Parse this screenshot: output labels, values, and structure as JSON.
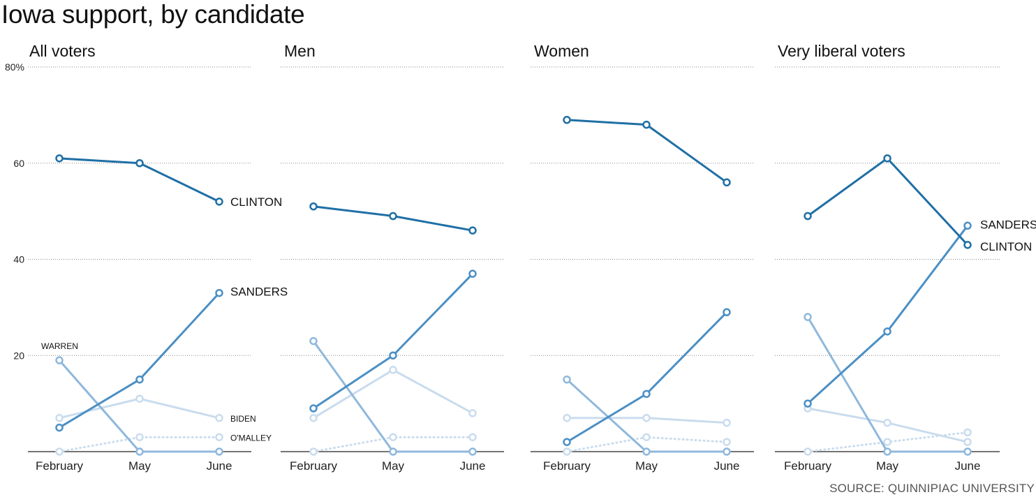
{
  "title": "Iowa support, by candidate",
  "source": "SOURCE: QUINNIPIAC UNIVERSITY",
  "colors": {
    "clinton": "#1f6fa5",
    "sanders": "#4b8fc4",
    "warren": "#8fb8dc",
    "biden": "#c9dcee",
    "omalley": "#c9dcee",
    "grid": "#888888",
    "baseline": "#222222"
  },
  "chart_data": [
    {
      "type": "line",
      "title": "All voters",
      "x": [
        "February",
        "May",
        "June"
      ],
      "yticks": [
        "20",
        "40",
        "60",
        "80%"
      ],
      "ylim": [
        0,
        80
      ],
      "series": [
        {
          "name": "CLINTON",
          "values": [
            61,
            60,
            52
          ],
          "color_key": "clinton",
          "style": "solid",
          "label_size": "big"
        },
        {
          "name": "SANDERS",
          "values": [
            5,
            15,
            33
          ],
          "color_key": "sanders",
          "style": "solid",
          "label_size": "big"
        },
        {
          "name": "WARREN",
          "values": [
            19,
            0,
            0
          ],
          "color_key": "warren",
          "style": "solid",
          "label_size": "small"
        },
        {
          "name": "BIDEN",
          "values": [
            7,
            11,
            7
          ],
          "color_key": "biden",
          "style": "solid",
          "label_size": "small"
        },
        {
          "name": "O'MALLEY",
          "values": [
            0,
            3,
            3
          ],
          "color_key": "omalley",
          "style": "dotted",
          "label_size": "small"
        }
      ]
    },
    {
      "type": "line",
      "title": "Men",
      "x": [
        "February",
        "May",
        "June"
      ],
      "ylim": [
        0,
        80
      ],
      "series": [
        {
          "values": [
            51,
            49,
            46
          ],
          "color_key": "clinton",
          "style": "solid"
        },
        {
          "values": [
            9,
            20,
            37
          ],
          "color_key": "sanders",
          "style": "solid"
        },
        {
          "values": [
            23,
            0,
            0
          ],
          "color_key": "warren",
          "style": "solid"
        },
        {
          "values": [
            7,
            17,
            8
          ],
          "color_key": "biden",
          "style": "solid"
        },
        {
          "values": [
            0,
            3,
            3
          ],
          "color_key": "omalley",
          "style": "dotted"
        }
      ]
    },
    {
      "type": "line",
      "title": "Women",
      "x": [
        "February",
        "May",
        "June"
      ],
      "ylim": [
        0,
        80
      ],
      "series": [
        {
          "values": [
            69,
            68,
            56
          ],
          "color_key": "clinton",
          "style": "solid"
        },
        {
          "values": [
            2,
            12,
            29
          ],
          "color_key": "sanders",
          "style": "solid"
        },
        {
          "values": [
            15,
            0,
            0
          ],
          "color_key": "warren",
          "style": "solid"
        },
        {
          "values": [
            7,
            7,
            6
          ],
          "color_key": "biden",
          "style": "solid"
        },
        {
          "values": [
            0,
            3,
            2
          ],
          "color_key": "omalley",
          "style": "dotted"
        }
      ]
    },
    {
      "type": "line",
      "title": "Very liberal voters",
      "x": [
        "February",
        "May",
        "June"
      ],
      "ylim": [
        0,
        80
      ],
      "series": [
        {
          "name": "CLINTON",
          "values": [
            49,
            61,
            43
          ],
          "color_key": "clinton",
          "style": "solid",
          "label_size": "big"
        },
        {
          "name": "SANDERS",
          "values": [
            10,
            25,
            47
          ],
          "color_key": "sanders",
          "style": "solid",
          "label_size": "big"
        },
        {
          "values": [
            28,
            0,
            0
          ],
          "color_key": "warren",
          "style": "solid"
        },
        {
          "values": [
            9,
            6,
            2
          ],
          "color_key": "biden",
          "style": "solid"
        },
        {
          "values": [
            0,
            2,
            4
          ],
          "color_key": "omalley",
          "style": "dotted"
        }
      ]
    }
  ]
}
